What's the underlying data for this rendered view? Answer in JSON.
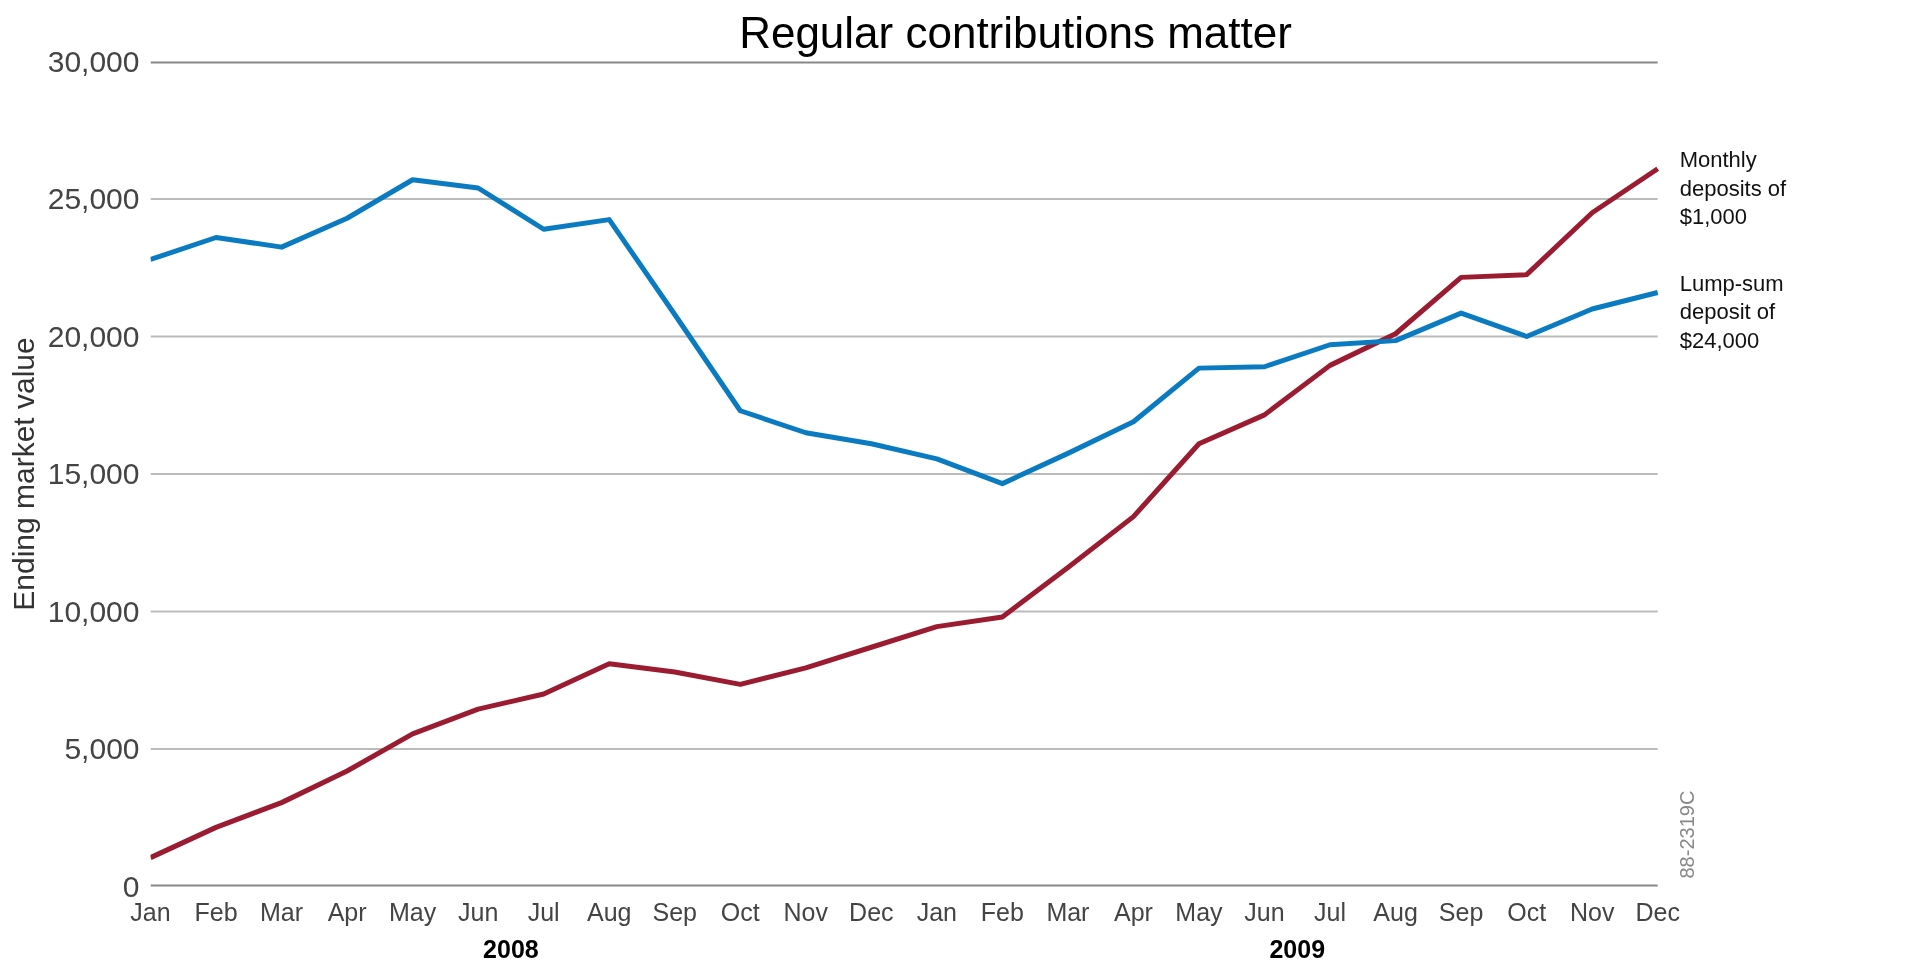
{
  "chart_data": {
    "type": "line",
    "title": "Regular contributions matter",
    "ylabel": "Ending market value",
    "categories": [
      "Jan",
      "Feb",
      "Mar",
      "Apr",
      "May",
      "Jun",
      "Jul",
      "Aug",
      "Sep",
      "Oct",
      "Nov",
      "Dec",
      "Jan",
      "Feb",
      "Mar",
      "Apr",
      "May",
      "Jun",
      "Jul",
      "Aug",
      "Sep",
      "Oct",
      "Nov",
      "Dec"
    ],
    "series": [
      {
        "name": "Monthly deposits of $1,000",
        "color": "#9b1c31",
        "values": [
          1050,
          2150,
          3050,
          4200,
          5550,
          6450,
          7000,
          8100,
          7800,
          7350,
          7950,
          8700,
          9450,
          9800,
          11600,
          13450,
          16100,
          17150,
          18950,
          20100,
          22150,
          22250,
          24500,
          26100
        ]
      },
      {
        "name": "Lump-sum deposit of $24,000",
        "color": "#0a7bc1",
        "values": [
          22800,
          23600,
          23250,
          24300,
          25700,
          25400,
          23900,
          24250,
          20800,
          17300,
          16500,
          16100,
          15550,
          14650,
          15750,
          16900,
          18850,
          18900,
          19700,
          19850,
          20850,
          20000,
          21000,
          21600
        ]
      }
    ],
    "ylim": [
      0,
      30000
    ],
    "yticks": [
      0,
      {
        "value": 5000,
        "label": "5,000"
      },
      {
        "value": 10000,
        "label": "10,000"
      },
      {
        "value": 15000,
        "label": "15,000"
      },
      {
        "value": 20000,
        "label": "20,000"
      },
      {
        "value": 25000,
        "label": "25,000"
      },
      {
        "value": 30000,
        "label": "30,000"
      }
    ],
    "grid": "y",
    "marker": "none",
    "line_style": "solid",
    "annotations": [
      "2008",
      "2009",
      "88-2319C"
    ]
  }
}
